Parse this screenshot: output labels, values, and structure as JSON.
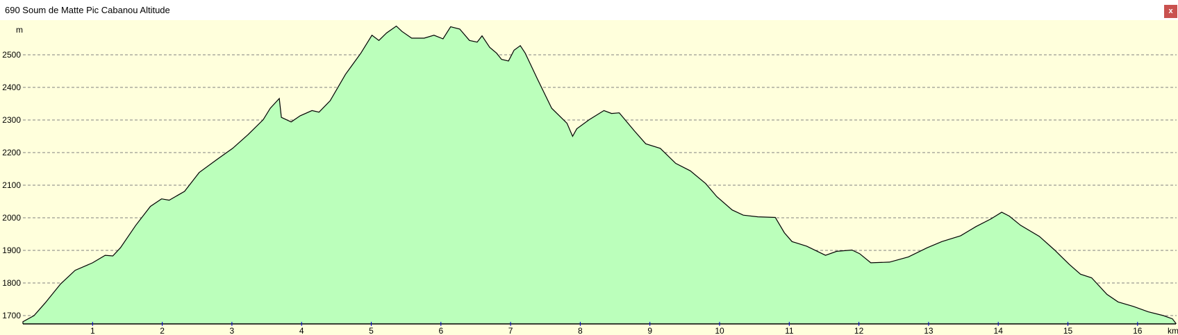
{
  "window": {
    "title": "690 Soum de Matte Pic Cabanou Altitude",
    "close_label": "x"
  },
  "colors": {
    "background": "#ffffdc",
    "fill": "#bbffbb",
    "line": "#000000",
    "grid": "#808080",
    "tick": "#0000cc",
    "close": "#c9514f"
  },
  "chart_data": {
    "type": "area",
    "title": "",
    "xlabel": "km",
    "ylabel": "m",
    "xlim": [
      0,
      16.55
    ],
    "ylim": [
      1675,
      2615
    ],
    "grid": true,
    "xticks": [
      1,
      2,
      3,
      4,
      5,
      6,
      7,
      8,
      9,
      10,
      11,
      12,
      13,
      14,
      15,
      16
    ],
    "yticks": [
      1700,
      1800,
      1900,
      2000,
      2100,
      2200,
      2300,
      2400,
      2500
    ],
    "x": [
      0,
      0.16,
      0.32,
      0.54,
      0.75,
      1.0,
      1.18,
      1.29,
      1.4,
      1.62,
      1.83,
      1.99,
      2.1,
      2.32,
      2.53,
      2.8,
      3.01,
      3.23,
      3.45,
      3.55,
      3.68,
      3.71,
      3.85,
      3.98,
      4.15,
      4.25,
      4.41,
      4.63,
      4.85,
      5.01,
      5.11,
      5.22,
      5.36,
      5.44,
      5.58,
      5.76,
      5.9,
      6.03,
      6.14,
      6.27,
      6.41,
      6.52,
      6.59,
      6.7,
      6.8,
      6.87,
      6.97,
      7.05,
      7.14,
      7.21,
      7.38,
      7.59,
      7.81,
      7.89,
      7.95,
      8.13,
      8.34,
      8.45,
      8.56,
      8.78,
      8.94,
      9.15,
      9.37,
      9.58,
      9.8,
      9.96,
      10.18,
      10.34,
      10.55,
      10.8,
      10.93,
      11.04,
      11.25,
      11.52,
      11.68,
      11.9,
      12.01,
      12.17,
      12.44,
      12.71,
      12.98,
      13.19,
      13.46,
      13.68,
      13.89,
      14.05,
      14.16,
      14.32,
      14.59,
      14.81,
      15.02,
      15.18,
      15.34,
      15.56,
      15.72,
      15.94,
      16.15,
      16.37,
      16.5,
      16.55
    ],
    "y": [
      1681,
      1700,
      1739,
      1797,
      1839,
      1862,
      1885,
      1883,
      1908,
      1977,
      2035,
      2058,
      2054,
      2081,
      2139,
      2181,
      2213,
      2255,
      2301,
      2336,
      2366,
      2308,
      2294,
      2313,
      2329,
      2324,
      2359,
      2440,
      2505,
      2560,
      2544,
      2567,
      2588,
      2572,
      2551,
      2551,
      2560,
      2549,
      2586,
      2579,
      2544,
      2539,
      2558,
      2523,
      2505,
      2486,
      2481,
      2514,
      2528,
      2505,
      2428,
      2336,
      2290,
      2250,
      2273,
      2301,
      2329,
      2320,
      2322,
      2266,
      2227,
      2213,
      2167,
      2144,
      2105,
      2065,
      2024,
      2008,
      2003,
      2001,
      1954,
      1927,
      1913,
      1885,
      1897,
      1901,
      1890,
      1862,
      1864,
      1880,
      1908,
      1927,
      1945,
      1973,
      1996,
      2017,
      2005,
      1977,
      1943,
      1901,
      1857,
      1827,
      1816,
      1765,
      1742,
      1728,
      1712,
      1700,
      1690,
      1676
    ]
  }
}
